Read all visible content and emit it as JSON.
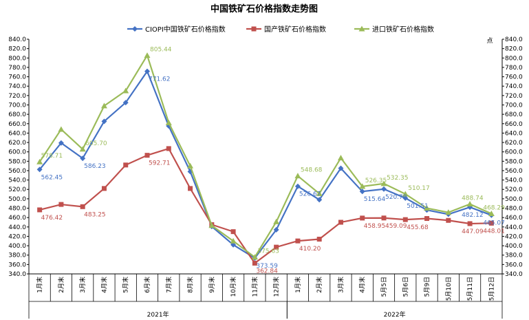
{
  "chart_data": {
    "type": "line",
    "title": "中国铁矿石价格指数走势图",
    "right_unit": "点",
    "categories": [
      "1月末",
      "2月末",
      "3月末",
      "4月末",
      "5月末",
      "6月末",
      "7月末",
      "8月末",
      "9月末",
      "10月末",
      "11月末",
      "12月末",
      "1月末",
      "2月末",
      "3月末",
      "4月末",
      "5月5日",
      "5月6日",
      "5月9日",
      "5月10日",
      "5月11日",
      "5月12日"
    ],
    "groups": [
      {
        "label": "2021年",
        "start": 0,
        "end": 11
      },
      {
        "label": "2022年",
        "start": 12,
        "end": 21
      }
    ],
    "ylim": [
      340,
      840
    ],
    "ystep": 20,
    "legend_position": "top",
    "grid": false,
    "series": [
      {
        "name": "CIOPI中国铁矿石价格指数",
        "color": "#4472C4",
        "marker": "diamond",
        "values": [
          562.45,
          619,
          586.23,
          665,
          705,
          771.62,
          655,
          558,
          441,
          402,
          373.59,
          434,
          526.67,
          498,
          565,
          515.64,
          520.7,
          501.51,
          476,
          467,
          482.12,
          465.07
        ]
      },
      {
        "name": "国产铁矿石价格指数",
        "color": "#C0504D",
        "marker": "square",
        "values": [
          476.42,
          488,
          483.25,
          522,
          572,
          592.71,
          607,
          522,
          445,
          430,
          362.84,
          397,
          410.2,
          414,
          450,
          458.95,
          459.09,
          455.68,
          458,
          454,
          447.09,
          448.01
        ]
      },
      {
        "name": "进口铁矿石价格指数",
        "color": "#9BBB59",
        "marker": "triangle",
        "values": [
          578.71,
          648,
          605.7,
          698,
          730,
          805.44,
          662,
          570,
          443,
          410,
          375.63,
          451,
          548.68,
          511,
          587,
          526.35,
          532.35,
          510.17,
          480,
          471,
          488.74,
          468.29
        ]
      }
    ],
    "data_labels": [
      {
        "series": 0,
        "index": 0,
        "text": "562.45"
      },
      {
        "series": 0,
        "index": 2,
        "text": "586.23"
      },
      {
        "series": 0,
        "index": 5,
        "text": "771.62"
      },
      {
        "series": 0,
        "index": 10,
        "text": "373.59"
      },
      {
        "series": 0,
        "index": 12,
        "text": "526.67"
      },
      {
        "series": 0,
        "index": 15,
        "text": "515.64"
      },
      {
        "series": 0,
        "index": 16,
        "text": "520.70"
      },
      {
        "series": 0,
        "index": 17,
        "text": "501.51"
      },
      {
        "series": 0,
        "index": 20,
        "text": "482.12"
      },
      {
        "series": 0,
        "index": 21,
        "text": "465.07"
      },
      {
        "series": 1,
        "index": 0,
        "text": "476.42"
      },
      {
        "series": 1,
        "index": 2,
        "text": "483.25"
      },
      {
        "series": 1,
        "index": 5,
        "text": "592.71"
      },
      {
        "series": 1,
        "index": 10,
        "text": "362.84"
      },
      {
        "series": 1,
        "index": 12,
        "text": "410.20"
      },
      {
        "series": 1,
        "index": 15,
        "text": "458.95"
      },
      {
        "series": 1,
        "index": 16,
        "text": "459.09"
      },
      {
        "series": 1,
        "index": 17,
        "text": "455.68"
      },
      {
        "series": 1,
        "index": 20,
        "text": "447.09"
      },
      {
        "series": 1,
        "index": 21,
        "text": "448.01"
      },
      {
        "series": 2,
        "index": 0,
        "text": "578.71"
      },
      {
        "series": 2,
        "index": 2,
        "text": "605.70"
      },
      {
        "series": 2,
        "index": 5,
        "text": "805.44"
      },
      {
        "series": 2,
        "index": 10,
        "text": "375.63"
      },
      {
        "series": 2,
        "index": 12,
        "text": "548.68"
      },
      {
        "series": 2,
        "index": 15,
        "text": "526.35"
      },
      {
        "series": 2,
        "index": 16,
        "text": "532.35"
      },
      {
        "series": 2,
        "index": 17,
        "text": "510.17"
      },
      {
        "series": 2,
        "index": 20,
        "text": "488.74"
      },
      {
        "series": 2,
        "index": 21,
        "text": "468.29"
      }
    ]
  }
}
